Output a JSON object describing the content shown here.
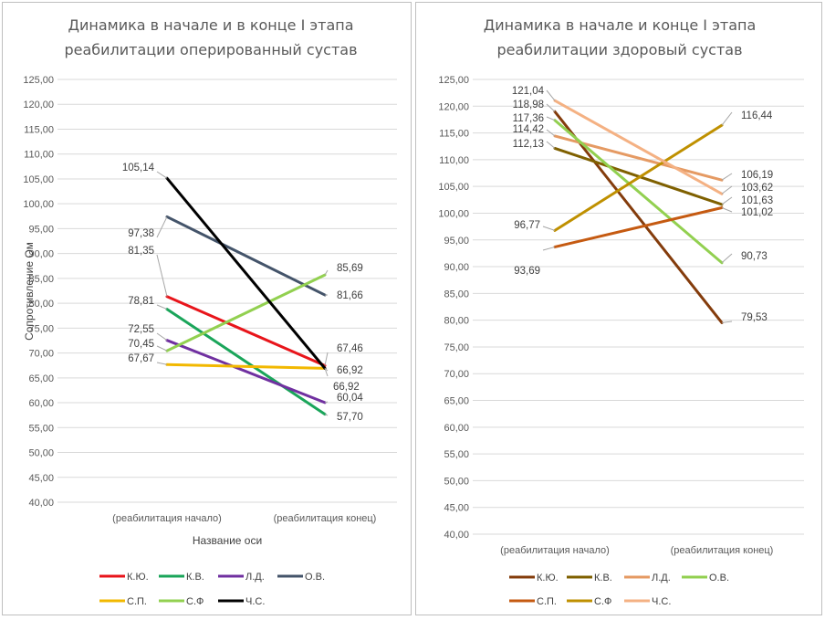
{
  "chart_data": [
    {
      "type": "line",
      "title": "Динамика в начале и в конце I этапа реабилитации оперированный сустав",
      "title_lines": [
        "Динамика в начале и в конце I этапа",
        "реабилитации оперированный сустав"
      ],
      "categories": [
        "(реабилитация начало)",
        "(реабилитация конец)"
      ],
      "xlabel": "Название оси",
      "ylabel": "Сопротивление Ом",
      "ylim": [
        40,
        125
      ],
      "ystep": 5,
      "grid": true,
      "legend": "bottom",
      "series": [
        {
          "name": "К.Ю.",
          "color": "#e8151b",
          "values": [
            81.35,
            67.46
          ],
          "labels": [
            "81,35",
            "67,46"
          ]
        },
        {
          "name": "К.В.",
          "color": "#1aa55a",
          "values": [
            78.81,
            57.7
          ],
          "labels": [
            "78,81",
            "57,70"
          ]
        },
        {
          "name": "Л.Д.",
          "color": "#7030a0",
          "values": [
            72.55,
            60.04
          ],
          "labels": [
            "72,55",
            "60,04"
          ]
        },
        {
          "name": "О.В.",
          "color": "#44546a",
          "values": [
            97.38,
            81.66
          ],
          "labels": [
            "97,38",
            "81,66"
          ]
        },
        {
          "name": "С.П.",
          "color": "#f2b800",
          "values": [
            67.67,
            66.92
          ],
          "labels": [
            "67,67",
            "66,92"
          ]
        },
        {
          "name": "С.Ф",
          "color": "#92d050",
          "values": [
            70.45,
            85.69
          ],
          "labels": [
            "70,45",
            "85,69"
          ]
        },
        {
          "name": "Ч.С.",
          "color": "#000000",
          "values": [
            105.14,
            66.92
          ],
          "labels": [
            "105,14",
            "66,92"
          ]
        }
      ]
    },
    {
      "type": "line",
      "title": "Динамика в начале и конце I этапа реабилитации здоровый сустав",
      "title_lines": [
        "Динамика в начале и конце I этапа",
        "реабилитации здоровый сустав"
      ],
      "categories": [
        "(реабилитация начало)",
        "(реабилитация конец)"
      ],
      "xlabel": "",
      "ylabel": "",
      "ylim": [
        40,
        125
      ],
      "ystep": 5,
      "grid": true,
      "legend": "bottom",
      "series": [
        {
          "name": "К.Ю.",
          "color": "#843c0c",
          "values": [
            118.98,
            79.53
          ],
          "labels": [
            "118,98",
            "79,53"
          ]
        },
        {
          "name": "К.В.",
          "color": "#7f6000",
          "values": [
            112.13,
            101.63
          ],
          "labels": [
            "112,13",
            "101,63"
          ]
        },
        {
          "name": "Л.Д.",
          "color": "#e59a63",
          "values": [
            114.42,
            106.19
          ],
          "labels": [
            "114,42",
            "106,19"
          ]
        },
        {
          "name": "О.В.",
          "color": "#92d050",
          "values": [
            117.36,
            90.73
          ],
          "labels": [
            "117,36",
            "90,73"
          ]
        },
        {
          "name": "С.П.",
          "color": "#c55a11",
          "values": [
            93.69,
            101.02
          ],
          "labels": [
            "93,69",
            "101,02"
          ]
        },
        {
          "name": "С.Ф",
          "color": "#bf9000",
          "values": [
            96.77,
            116.44
          ],
          "labels": [
            "96,77",
            "116,44"
          ]
        },
        {
          "name": "Ч.С.",
          "color": "#f4b183",
          "values": [
            121.04,
            103.62
          ],
          "labels": [
            "121,04",
            "103,62"
          ]
        }
      ]
    }
  ]
}
